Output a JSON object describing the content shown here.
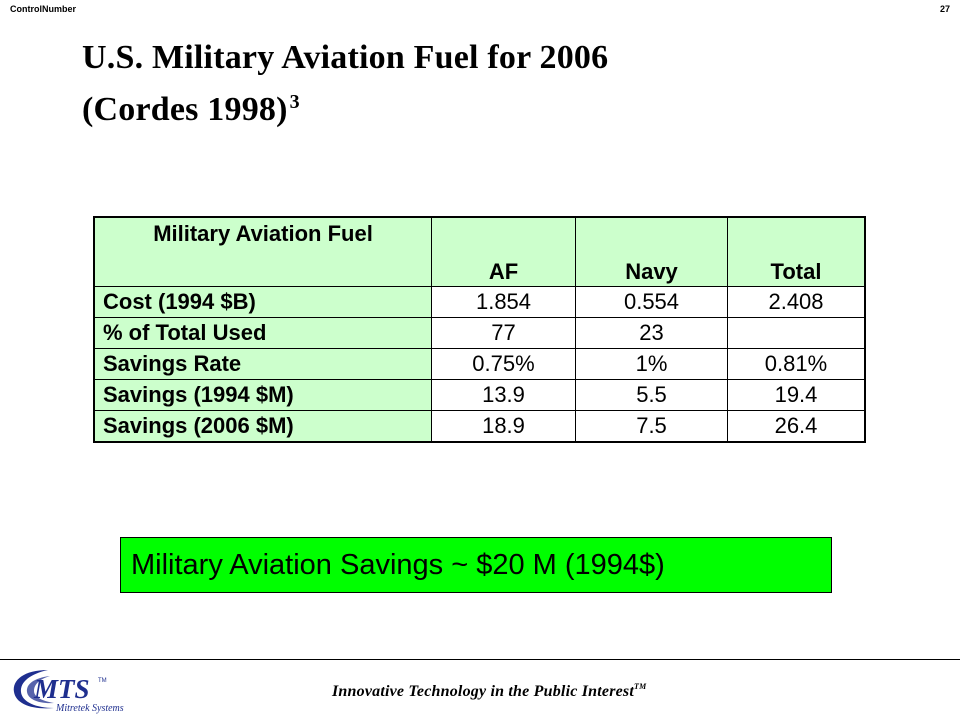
{
  "header": {
    "control_label": "ControlNumber",
    "page_number": "27"
  },
  "title": {
    "line1": "U.S. Military Aviation Fuel for 2006",
    "line2": "(Cordes 1998)",
    "footnote_mark": "3"
  },
  "table": {
    "caption": "Military Aviation Fuel",
    "columns": [
      "AF",
      "Navy",
      "Total"
    ],
    "rows": [
      {
        "label": "Cost (1994 $B)",
        "values": [
          "1.854",
          "0.554",
          "2.408"
        ]
      },
      {
        "label": "% of Total Used",
        "values": [
          "77",
          "23",
          ""
        ]
      },
      {
        "label": "Savings Rate",
        "values": [
          "0.75%",
          "1%",
          "0.81%"
        ]
      },
      {
        "label": "Savings (1994 $M)",
        "values": [
          "13.9",
          "5.5",
          "19.4"
        ]
      },
      {
        "label": "Savings (2006 $M)",
        "values": [
          "18.9",
          "7.5",
          "26.4"
        ]
      }
    ]
  },
  "callout": "Military Aviation Savings ~ $20 M (1994$)",
  "footer": {
    "logo_text": "MTS",
    "logo_tm": "TM",
    "logo_sub": "Mitretek Systems",
    "tagline": "Innovative Technology in the Public Interest",
    "tagline_tm": "TM"
  },
  "colors": {
    "table_header_bg": "#ccffcc",
    "callout_bg": "#00ff00",
    "logo_blue": "#1f2f8f"
  }
}
